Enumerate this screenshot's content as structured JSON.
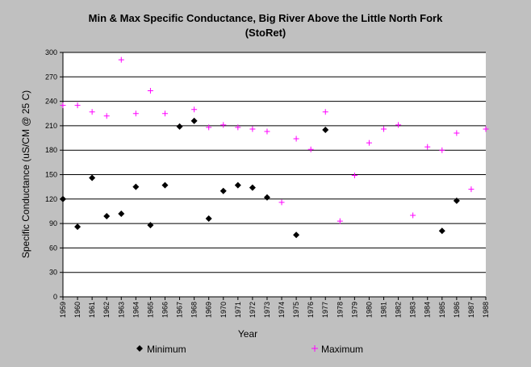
{
  "chart_data": {
    "type": "scatter",
    "title": "Min & Max Specific Conductance, Big River Above the Little North Fork",
    "subtitle": "(StoRet)",
    "xlabel": "Year",
    "ylabel": "Specific Conductance (uS/CM @ 25 C)",
    "ylim": [
      0,
      300
    ],
    "yticks": [
      "0",
      "30",
      "60",
      "90",
      "120",
      "150",
      "180",
      "210",
      "240",
      "270",
      "300"
    ],
    "categories": [
      "1959",
      "1960",
      "1961",
      "1962",
      "1963",
      "1964",
      "1965",
      "1966",
      "1967",
      "1968",
      "1969",
      "1970",
      "1971",
      "1972",
      "1973",
      "1974",
      "1975",
      "1976",
      "1977",
      "1978",
      "1979",
      "1980",
      "1981",
      "1982",
      "1983",
      "1984",
      "1985",
      "1986",
      "1987",
      "1988"
    ],
    "grid": true,
    "legend_position": "bottom",
    "series": [
      {
        "name": "Minimum",
        "marker": "diamond",
        "color": "#000000",
        "values": [
          120,
          86,
          146,
          99,
          102,
          135,
          88,
          137,
          209,
          216,
          96,
          130,
          137,
          134,
          122,
          null,
          76,
          null,
          205,
          null,
          null,
          null,
          null,
          null,
          null,
          null,
          81,
          118,
          null,
          null
        ]
      },
      {
        "name": "Maximum",
        "marker": "plus",
        "color": "#ff00ff",
        "values": [
          235,
          235,
          227,
          222,
          291,
          225,
          253,
          225,
          209,
          230,
          208,
          211,
          208,
          206,
          203,
          116,
          194,
          181,
          227,
          93,
          149,
          189,
          206,
          211,
          100,
          184,
          180,
          201,
          132,
          206
        ]
      }
    ]
  }
}
